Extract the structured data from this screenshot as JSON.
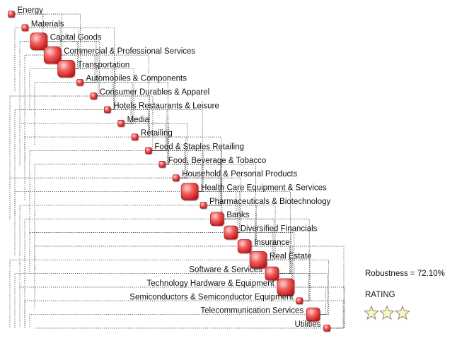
{
  "nodes": [
    {
      "label": "Energy",
      "weight": 1
    },
    {
      "label": "Materials",
      "weight": 1
    },
    {
      "label": "Capital Goods",
      "weight": 3
    },
    {
      "label": "Commercial & Professional Services",
      "weight": 3
    },
    {
      "label": "Transportation",
      "weight": 3
    },
    {
      "label": "Automobiles & Components",
      "weight": 1
    },
    {
      "label": "Consumer Durables & Apparel",
      "weight": 1
    },
    {
      "label": "Hotels Restaurants & Leisure",
      "weight": 1
    },
    {
      "label": "Media",
      "weight": 1
    },
    {
      "label": "Retailing",
      "weight": 1
    },
    {
      "label": "Food & Staples Retailing",
      "weight": 1
    },
    {
      "label": "Food, Beverage & Tobacco",
      "weight": 1
    },
    {
      "label": "Household & Personal Products",
      "weight": 1
    },
    {
      "label": "Health Care Equipment & Services",
      "weight": 3
    },
    {
      "label": "Pharmaceuticals & Biotechnology",
      "weight": 1
    },
    {
      "label": "Banks",
      "weight": 2
    },
    {
      "label": "Diversified Financials",
      "weight": 2
    },
    {
      "label": "Insurance",
      "weight": 2
    },
    {
      "label": "Real Estate",
      "weight": 3
    },
    {
      "label": "Software & Services",
      "weight": 2
    },
    {
      "label": "Technology Hardware & Equipment",
      "weight": 3
    },
    {
      "label": "Semiconductors & Semiconductor Equipment",
      "weight": 1
    },
    {
      "label": "Telecommunication Services",
      "weight": 2
    },
    {
      "label": "Utilities",
      "weight": 1
    }
  ],
  "robustness": "Robustness = 72.10%",
  "rating_label": "RATING",
  "rating_stars": 3,
  "colors": {
    "node_fill": "#e23b3b",
    "node_highlight": "#ffd4d4",
    "connector": "#333333",
    "star_fill": "#fbf6c8",
    "star_stroke": "#8a8a6a"
  }
}
